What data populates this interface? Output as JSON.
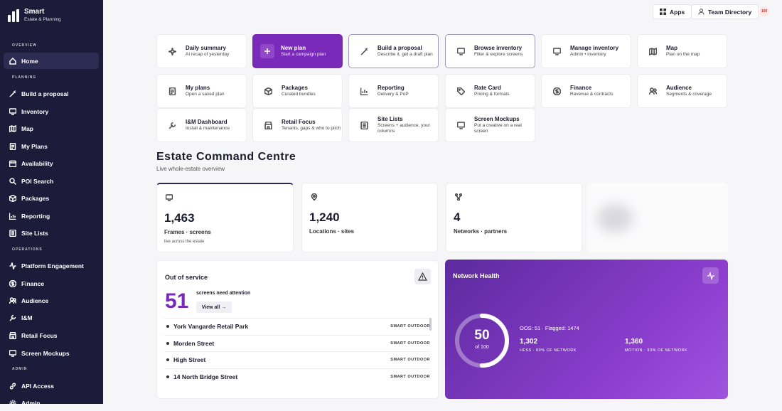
{
  "brand": {
    "name": "Smart",
    "subtitle": "Estate & Planning"
  },
  "sidebar": {
    "sections": {
      "overview": "OVERVIEW",
      "planning": "PLANNING",
      "operations": "OPERATIONS",
      "admin": "ADMIN"
    },
    "items": [
      {
        "label": "Home",
        "icon": "home-icon"
      },
      {
        "label": "Build a proposal",
        "icon": "wand-icon"
      },
      {
        "label": "Inventory",
        "icon": "monitor-icon"
      },
      {
        "label": "Map",
        "icon": "map-icon"
      },
      {
        "label": "My Plans",
        "icon": "document-icon"
      },
      {
        "label": "Availability",
        "icon": "calendar-icon"
      },
      {
        "label": "POI Search",
        "icon": "search-icon"
      },
      {
        "label": "Packages",
        "icon": "package-icon"
      },
      {
        "label": "Reporting",
        "icon": "chart-icon"
      },
      {
        "label": "Site Lists",
        "icon": "list-icon"
      },
      {
        "label": "Platform Engagement",
        "icon": "activity-icon"
      },
      {
        "label": "Finance",
        "icon": "dollar-icon"
      },
      {
        "label": "Audience",
        "icon": "users-icon"
      },
      {
        "label": "I&M",
        "icon": "wrench-icon"
      },
      {
        "label": "Retail Focus",
        "icon": "store-icon"
      },
      {
        "label": "Screen Mockups",
        "icon": "monitor-icon"
      },
      {
        "label": "API Access",
        "icon": "link-icon"
      },
      {
        "label": "Admin",
        "icon": "gear-icon"
      }
    ]
  },
  "topbar": {
    "apps": "Apps",
    "team": "Team Directory",
    "badge": "100"
  },
  "tiles": [
    {
      "title": "Daily summary",
      "sub": "AI recap of yesterday"
    },
    {
      "title": "New plan",
      "sub": "Start a campaign plan"
    },
    {
      "title": "Build a proposal",
      "sub": "Describe it, get a draft plan"
    },
    {
      "title": "Browse inventory",
      "sub": "Filter & explore screens"
    },
    {
      "title": "Manage inventory",
      "sub": "Admin • inventory"
    },
    {
      "title": "Map",
      "sub": "Plan on the map"
    },
    {
      "title": "My plans",
      "sub": "Open a saved plan"
    },
    {
      "title": "Packages",
      "sub": "Curated bundles"
    },
    {
      "title": "Reporting",
      "sub": "Delivery & PoP"
    },
    {
      "title": "Rate Card",
      "sub": "Pricing & formats"
    },
    {
      "title": "Finance",
      "sub": "Revenue & contracts"
    },
    {
      "title": "Audience",
      "sub": "Segments & coverage"
    },
    {
      "title": "I&M Dashboard",
      "sub": "Install & maintenance"
    },
    {
      "title": "Retail Focus",
      "sub": "Tenants, gaps & who to pitch"
    },
    {
      "title": "Site Lists",
      "sub": "Screens + audience, your columns"
    },
    {
      "title": "Screen Mockups",
      "sub": "Put a creative on a real screen"
    }
  ],
  "main": {
    "title": "Estate Command Centre",
    "subtitle": "Live whole-estate overview"
  },
  "stats": [
    {
      "value": "1,463",
      "label": "Frames · screens",
      "note": "live across the estate"
    },
    {
      "value": "1,240",
      "label": "Locations · sites"
    },
    {
      "value": "4",
      "label": "Networks · partners"
    }
  ],
  "oos": {
    "title": "Out of service",
    "count": "51",
    "attention": "screens need attention",
    "view_all": "View all →",
    "rows": [
      {
        "name": "York Vangarde Retail Park",
        "tag": "SMART OUTDOOR"
      },
      {
        "name": "Morden Street",
        "tag": "SMART OUTDOOR"
      },
      {
        "name": "High Street",
        "tag": "SMART OUTDOOR"
      },
      {
        "name": "14 North Bridge Street",
        "tag": "SMART OUTDOOR"
      }
    ]
  },
  "health": {
    "title": "Network Health",
    "score": "50",
    "score_of": "of 100",
    "score_value": 50,
    "flags": "OOS: 51 · Flagged: 1474",
    "metrics": [
      {
        "value": "1,302",
        "label": "HFSS · 89% OF NETWORK"
      },
      {
        "value": "1,360",
        "label": "MOTION · 93% OF NETWORK"
      }
    ]
  }
}
